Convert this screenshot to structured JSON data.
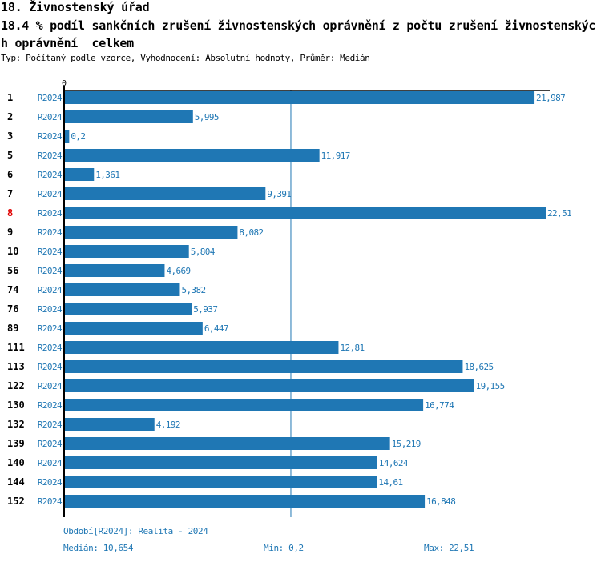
{
  "header": {
    "title": "18. Živnostenský úřad",
    "subtitle": "18.4 % podíl sankčních zrušení živnostenských oprávnění z počtu zrušení živnostenských oprávnění  celkem",
    "info": "Typ: Počítaný podle vzorce, Vyhodnocení: Absolutní hodnoty, Průměr: Medián"
  },
  "colors": {
    "bar": "#1f77b4",
    "highlight_label": "#e00000",
    "axis": "#000000"
  },
  "chart_data": {
    "type": "bar",
    "orientation": "horizontal",
    "title": "18.4 % podíl sankčních zrušení živnostenských oprávnění z počtu zrušení živnostenských oprávnění  celkem",
    "x_tick_labels": [
      "0"
    ],
    "xlim": [
      0,
      22.51
    ],
    "series_label": "R2024",
    "highlighted_category": "8",
    "median": 10.654,
    "categories": [
      "1",
      "2",
      "3",
      "5",
      "6",
      "7",
      "8",
      "9",
      "10",
      "56",
      "74",
      "76",
      "89",
      "111",
      "113",
      "122",
      "130",
      "132",
      "139",
      "140",
      "144",
      "152"
    ],
    "values": [
      21.987,
      5.995,
      0.2,
      11.917,
      1.361,
      9.391,
      22.51,
      8.082,
      5.804,
      4.669,
      5.382,
      5.937,
      6.447,
      12.81,
      18.625,
      19.155,
      16.774,
      4.192,
      15.219,
      14.624,
      14.61,
      16.848
    ],
    "value_labels": [
      "21,987",
      "5,995",
      "0,2",
      "11,917",
      "1,361",
      "9,391",
      "22,51",
      "8,082",
      "5,804",
      "4,669",
      "5,382",
      "5,937",
      "6,447",
      "12,81",
      "18,625",
      "19,155",
      "16,774",
      "4,192",
      "15,219",
      "14,624",
      "14,61",
      "16,848"
    ]
  },
  "footer": {
    "period": "Období[R2024]: Realita - 2024",
    "median": "Medián: 10,654",
    "min": "Min: 0,2",
    "max": "Max: 22,51"
  }
}
